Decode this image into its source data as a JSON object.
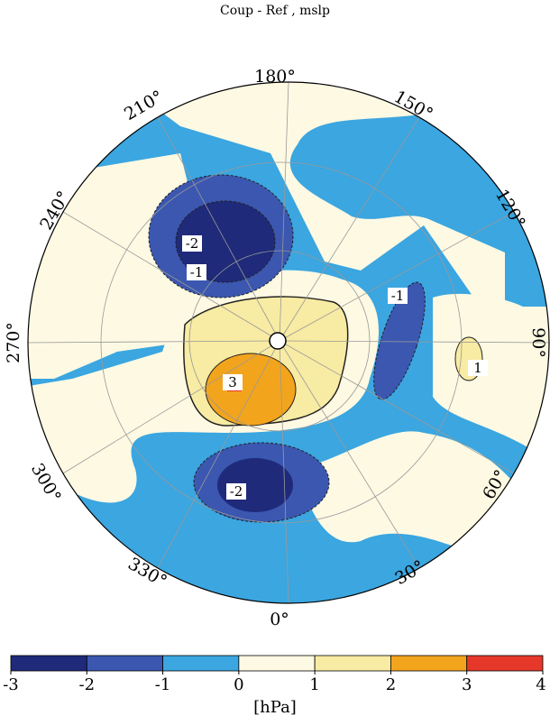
{
  "title": "Coup - Ref , mslp",
  "longitude_labels": [
    "180°",
    "150°",
    "120°",
    "90°",
    "60°",
    "30°",
    "0°",
    "330°",
    "300°",
    "270°",
    "240°",
    "210°"
  ],
  "contour_labels": [
    "-2",
    "-1",
    "-1",
    "1",
    "3",
    "-2"
  ],
  "colorbar": {
    "ticks": [
      -3,
      -2,
      -1,
      0,
      1,
      2,
      3,
      4
    ],
    "colors": [
      "#1f2a7a",
      "#3b57b0",
      "#3ba6e0",
      "#fdf9e3",
      "#f8eba3",
      "#f3a41d",
      "#e6382a"
    ],
    "unit": "[hPa]"
  }
}
